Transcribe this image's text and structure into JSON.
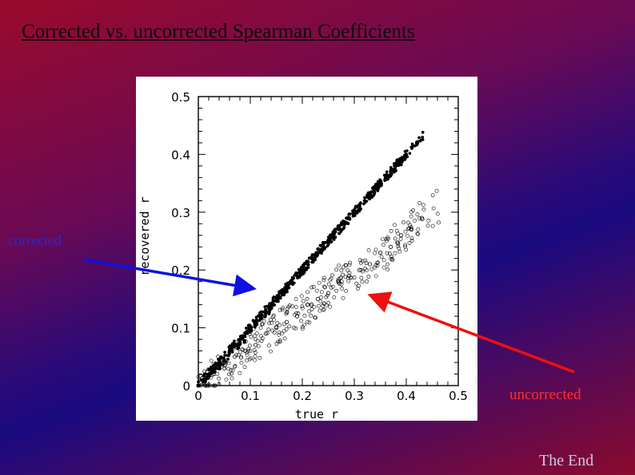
{
  "slide": {
    "title": "Corrected vs. uncorrected Spearman Coefficients",
    "label_corrected": "corrected",
    "label_uncorrected": "uncorrected",
    "footer": "The End",
    "colors": {
      "corrected_label": "#2a2acc",
      "uncorrected_label": "#ff3030",
      "blue_arrow": "#1010e0",
      "red_arrow": "#ee1010"
    }
  },
  "chart_data": {
    "type": "scatter",
    "title": "",
    "xlabel": "true r",
    "ylabel": "recovered r",
    "xlim": [
      0,
      0.5
    ],
    "ylim": [
      0,
      0.5
    ],
    "xticks": [
      "0",
      "0.1",
      "0.2",
      "0.3",
      "0.4",
      "0.5"
    ],
    "yticks": [
      "0",
      "0.1",
      "0.2",
      "0.3",
      "0.4",
      "0.5"
    ],
    "grid": false,
    "series": [
      {
        "name": "corrected",
        "marker": "filled-circle",
        "points": [
          [
            0.01,
            0.01
          ],
          [
            0.02,
            0.02
          ],
          [
            0.03,
            0.03
          ],
          [
            0.04,
            0.04
          ],
          [
            0.05,
            0.045
          ],
          [
            0.06,
            0.06
          ],
          [
            0.07,
            0.07
          ],
          [
            0.08,
            0.075
          ],
          [
            0.09,
            0.09
          ],
          [
            0.1,
            0.1
          ],
          [
            0.11,
            0.11
          ],
          [
            0.12,
            0.12
          ],
          [
            0.13,
            0.125
          ],
          [
            0.14,
            0.14
          ],
          [
            0.15,
            0.15
          ],
          [
            0.16,
            0.16
          ],
          [
            0.17,
            0.17
          ],
          [
            0.18,
            0.18
          ],
          [
            0.19,
            0.19
          ],
          [
            0.2,
            0.2
          ],
          [
            0.21,
            0.21
          ],
          [
            0.22,
            0.22
          ],
          [
            0.23,
            0.23
          ],
          [
            0.24,
            0.24
          ],
          [
            0.25,
            0.25
          ],
          [
            0.26,
            0.26
          ],
          [
            0.27,
            0.27
          ],
          [
            0.28,
            0.28
          ],
          [
            0.29,
            0.29
          ],
          [
            0.3,
            0.3
          ],
          [
            0.31,
            0.31
          ],
          [
            0.32,
            0.32
          ],
          [
            0.33,
            0.33
          ],
          [
            0.34,
            0.34
          ],
          [
            0.35,
            0.35
          ],
          [
            0.36,
            0.36
          ],
          [
            0.37,
            0.37
          ],
          [
            0.38,
            0.38
          ],
          [
            0.39,
            0.39
          ],
          [
            0.4,
            0.4
          ],
          [
            0.42,
            0.42
          ]
        ]
      },
      {
        "name": "uncorrected",
        "marker": "open-circle",
        "points": [
          [
            0.01,
            0.005
          ],
          [
            0.03,
            0.02
          ],
          [
            0.05,
            0.03
          ],
          [
            0.07,
            0.05
          ],
          [
            0.09,
            0.06
          ],
          [
            0.11,
            0.07
          ],
          [
            0.13,
            0.09
          ],
          [
            0.15,
            0.1
          ],
          [
            0.17,
            0.11
          ],
          [
            0.19,
            0.12
          ],
          [
            0.21,
            0.14
          ],
          [
            0.23,
            0.15
          ],
          [
            0.25,
            0.16
          ],
          [
            0.27,
            0.18
          ],
          [
            0.29,
            0.19
          ],
          [
            0.31,
            0.2
          ],
          [
            0.33,
            0.21
          ],
          [
            0.35,
            0.23
          ],
          [
            0.37,
            0.24
          ],
          [
            0.39,
            0.26
          ],
          [
            0.41,
            0.27
          ],
          [
            0.43,
            0.29
          ]
        ]
      }
    ]
  }
}
